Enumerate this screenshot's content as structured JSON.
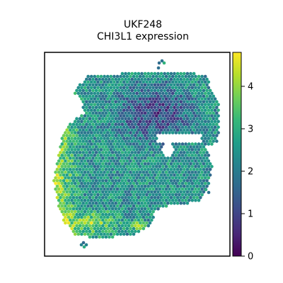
{
  "chart_data": {
    "type": "scatter",
    "subtype": "spatial-hexbin",
    "title_line1": "UKF248",
    "title_line2": "CHI3L1 expression",
    "xlabel": "",
    "ylabel": "",
    "axis_ticks_visible": false,
    "grid": false,
    "colormap": "viridis",
    "colormap_stops": [
      "#440154",
      "#482878",
      "#3e4989",
      "#31688e",
      "#26828e",
      "#1f9e89",
      "#35b779",
      "#6ece58",
      "#b5de2b",
      "#fde725"
    ],
    "colorbar": {
      "location": "right",
      "vmin": 0,
      "vmax": 4.8,
      "ticks": [
        0,
        1,
        2,
        3,
        4
      ],
      "tick_labels": [
        "0",
        "1",
        "2",
        "3",
        "4"
      ]
    },
    "value_range": [
      0,
      4.8
    ],
    "expression_pattern": "low values (~0-1.5) concentrated in top-center and upper-middle region; high values (~3.5-4.8) along left and bottom-left edges; intermediate (~2-3) elsewhere"
  }
}
